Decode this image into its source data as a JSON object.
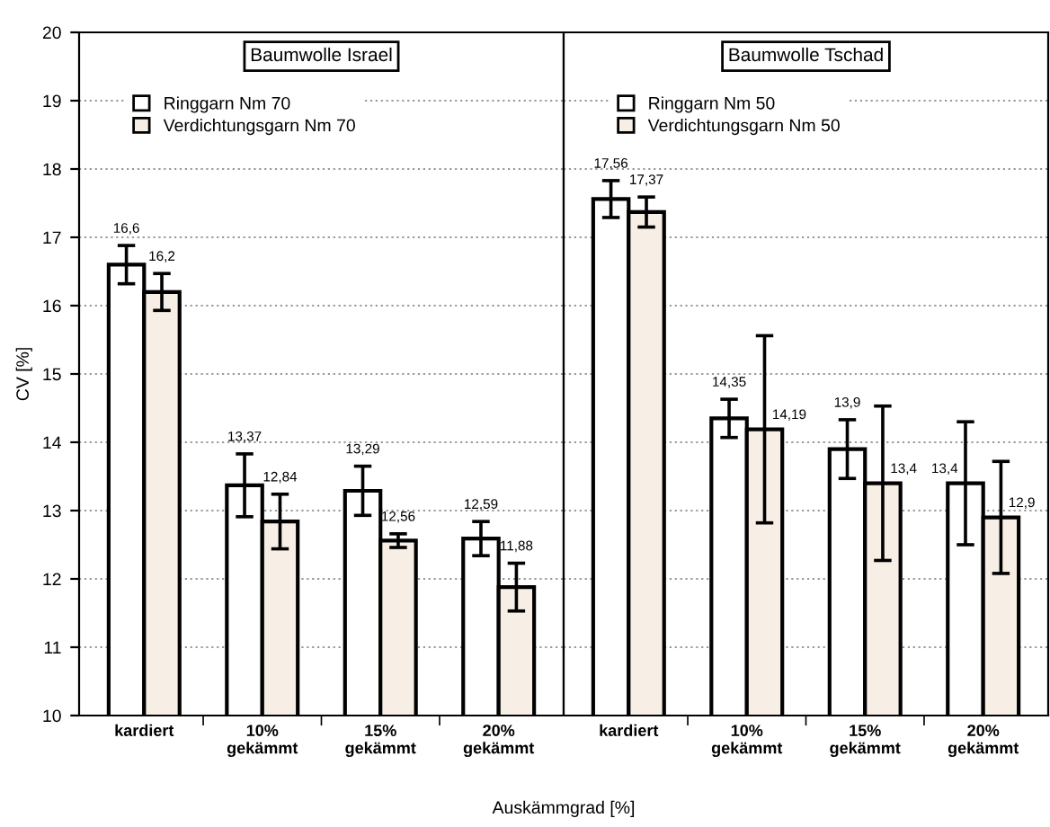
{
  "chart_data": [
    {
      "type": "bar",
      "title": "Baumwolle Israel",
      "xlabel": "Auskämmgrad [%]",
      "ylabel": "CV [%]",
      "categories": [
        "kardiert",
        "10%\ngekämmt",
        "15%\ngekämmt",
        "20%\ngekämmt"
      ],
      "series": [
        {
          "name": "Ringgarn Nm 70",
          "color": "#ffffff",
          "values": [
            16.6,
            13.37,
            13.29,
            12.59
          ],
          "errors": [
            0.28,
            0.46,
            0.36,
            0.25
          ],
          "value_labels": [
            "16,6",
            "13,37",
            "13,29",
            "12,59"
          ]
        },
        {
          "name": "Verdichtungsgarn Nm 70",
          "color": "#f7efe6",
          "values": [
            16.2,
            12.84,
            12.56,
            11.88
          ],
          "errors": [
            0.27,
            0.4,
            0.1,
            0.35
          ],
          "value_labels": [
            "16,2",
            "12,84",
            "12,56",
            "11,88"
          ]
        }
      ],
      "ylim": [
        10,
        20
      ],
      "yticks": [
        10,
        11,
        12,
        13,
        14,
        15,
        16,
        17,
        18,
        19,
        20
      ],
      "grid": "y",
      "legend": "top left"
    },
    {
      "type": "bar",
      "title": "Baumwolle Tschad",
      "categories": [
        "kardiert",
        "10%\ngekämmt",
        "15%\ngekämmt",
        "20%\ngekämmt"
      ],
      "series": [
        {
          "name": "Ringgarn Nm 50",
          "color": "#ffffff",
          "values": [
            17.56,
            14.35,
            13.9,
            13.4
          ],
          "errors": [
            0.27,
            0.28,
            0.43,
            0.9
          ],
          "value_labels": [
            "17,56",
            "14,35",
            "13,9",
            "13,4"
          ]
        },
        {
          "name": "Verdichtungsgarn Nm 50",
          "color": "#f7efe6",
          "values": [
            17.37,
            14.19,
            13.4,
            12.9
          ],
          "errors": [
            0.22,
            1.37,
            1.13,
            0.82
          ],
          "value_labels": [
            "17,37",
            "14,19",
            "13,4",
            "12,9"
          ]
        }
      ],
      "ylim": [
        10,
        20
      ],
      "yticks": [
        10,
        11,
        12,
        13,
        14,
        15,
        16,
        17,
        18,
        19,
        20
      ],
      "grid": "y",
      "legend": "top left",
      "tick_labels": "x"
    }
  ]
}
